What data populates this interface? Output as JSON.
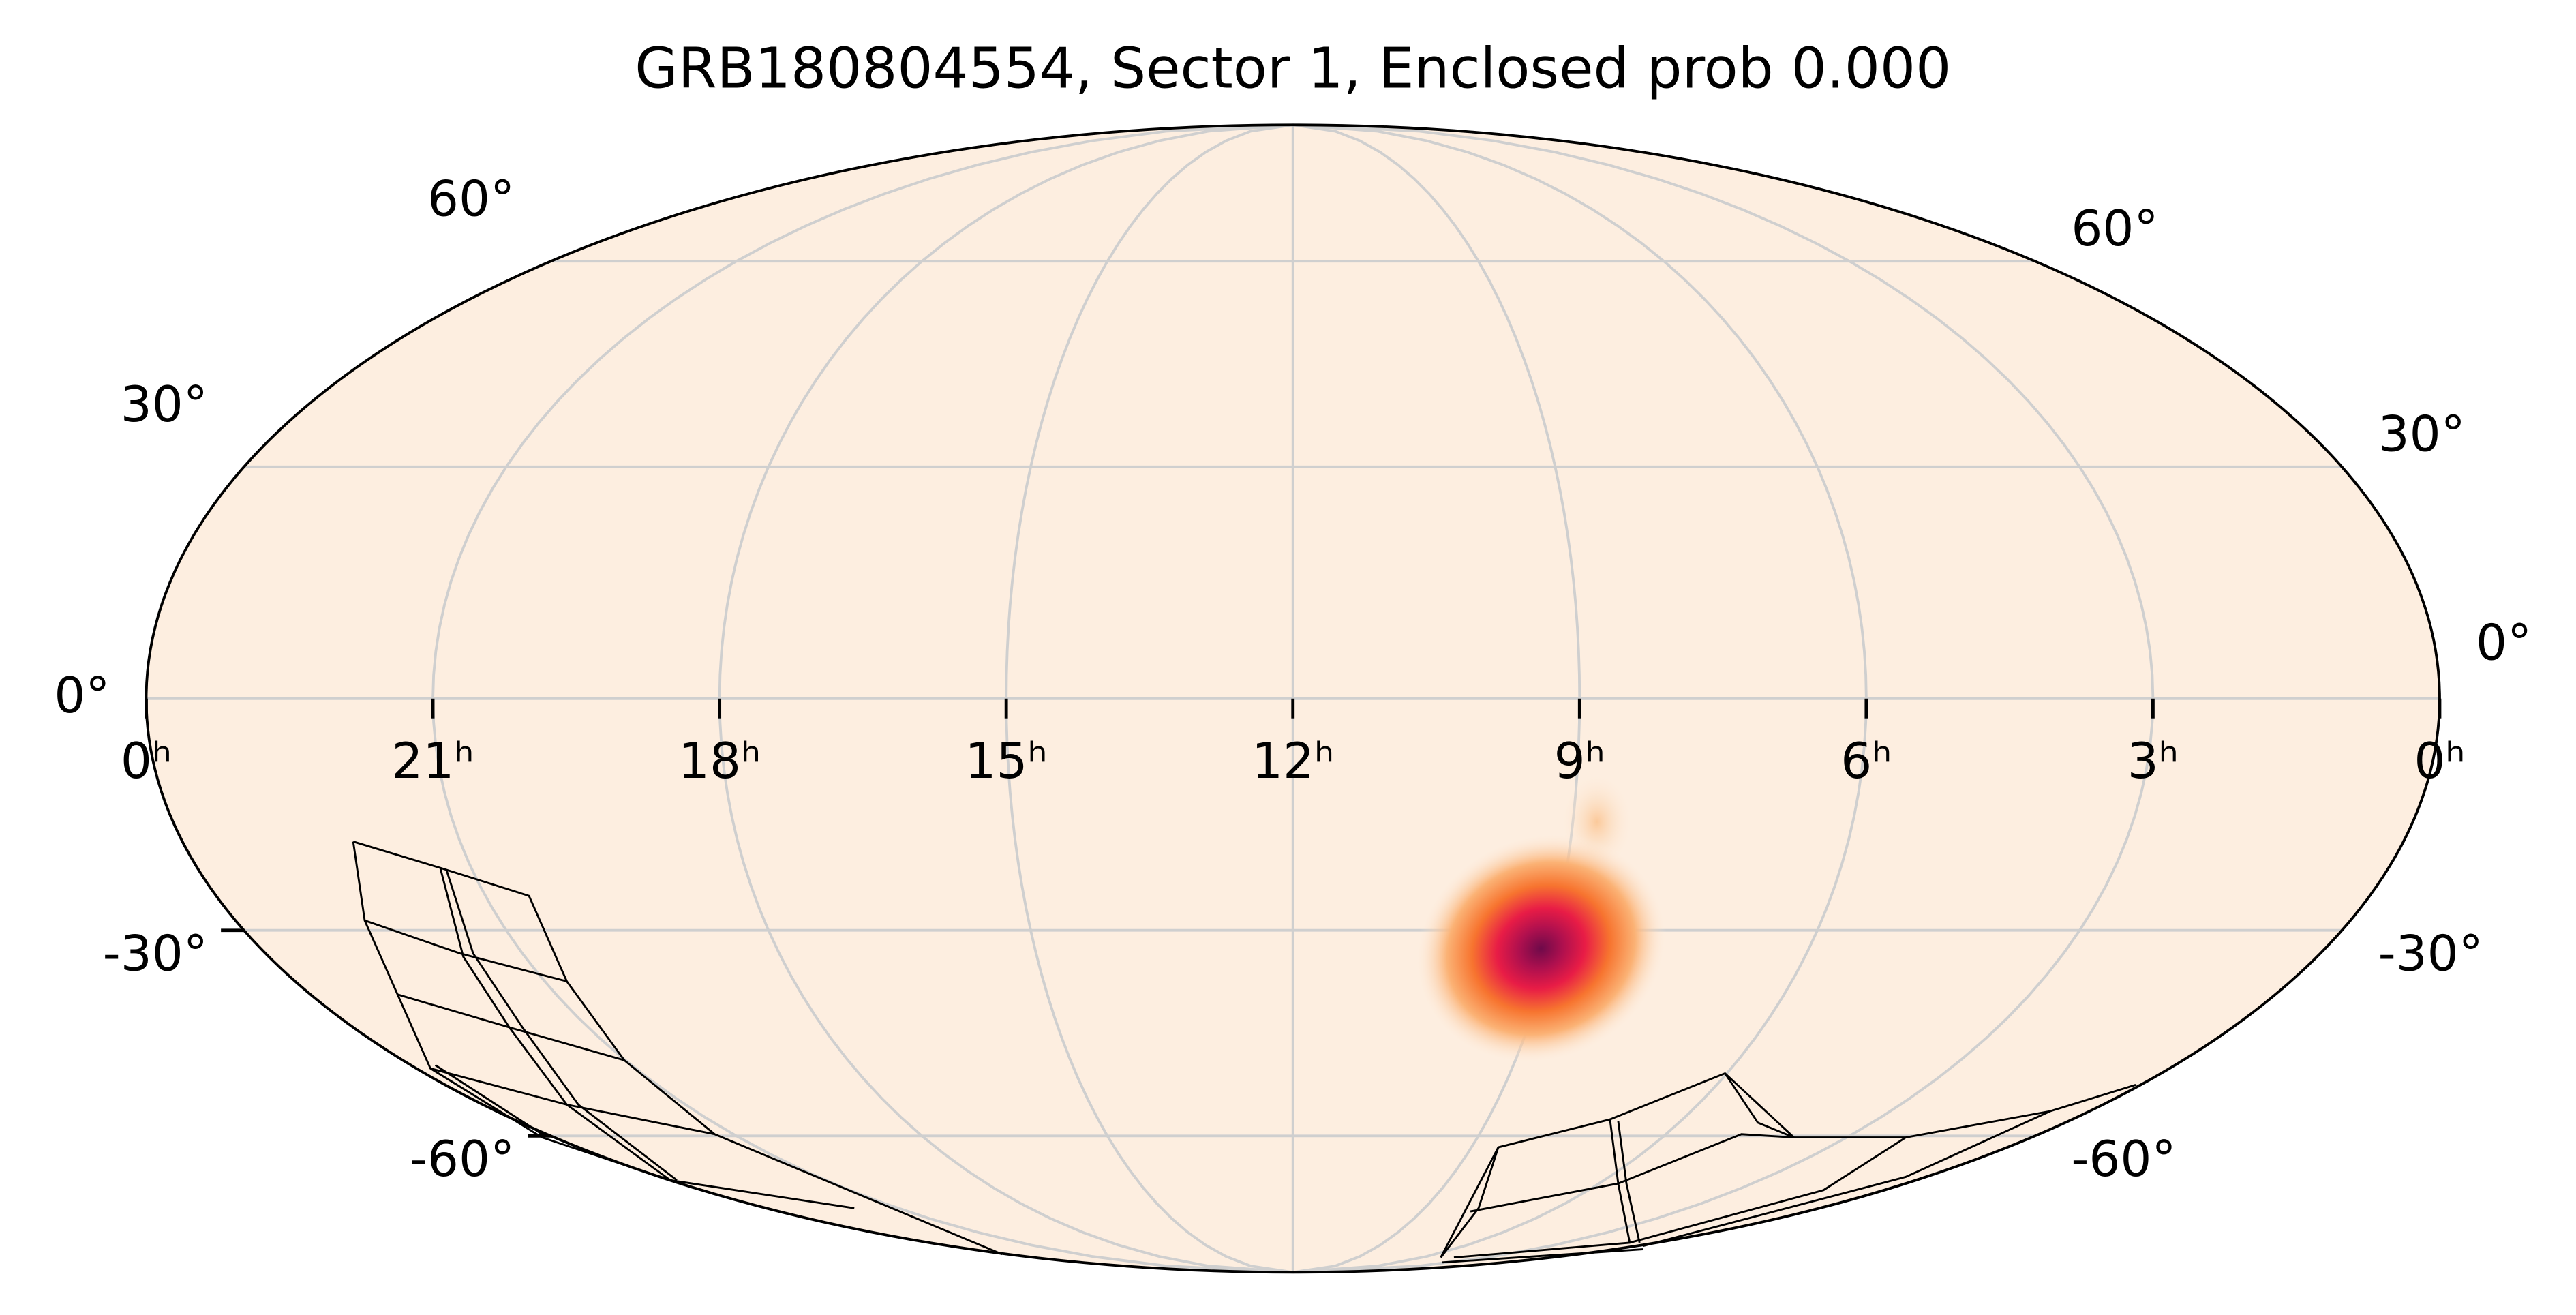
{
  "chart_data": {
    "type": "mollweide",
    "title": "GRB180804554, Sector 1, Enclosed prob 0.000",
    "xticks": [
      {
        "value": 24,
        "label": "0ʰ"
      },
      {
        "value": 21,
        "label": "21ʰ"
      },
      {
        "value": 18,
        "label": "18ʰ"
      },
      {
        "value": 15,
        "label": "15ʰ"
      },
      {
        "value": 12,
        "label": "12ʰ"
      },
      {
        "value": 9,
        "label": "9ʰ"
      },
      {
        "value": 6,
        "label": "6ʰ"
      },
      {
        "value": 3,
        "label": "3ʰ"
      },
      {
        "value": 0,
        "label": "0ʰ"
      }
    ],
    "yticks": [
      {
        "value": -60,
        "label": "-60°"
      },
      {
        "value": -30,
        "label": "-30°"
      },
      {
        "value": 0,
        "label": "0°"
      },
      {
        "value": 30,
        "label": "30°"
      },
      {
        "value": 60,
        "label": "60°"
      }
    ],
    "xlim": [
      24,
      0
    ],
    "ylim": [
      -90,
      90
    ],
    "grid": true
  }
}
